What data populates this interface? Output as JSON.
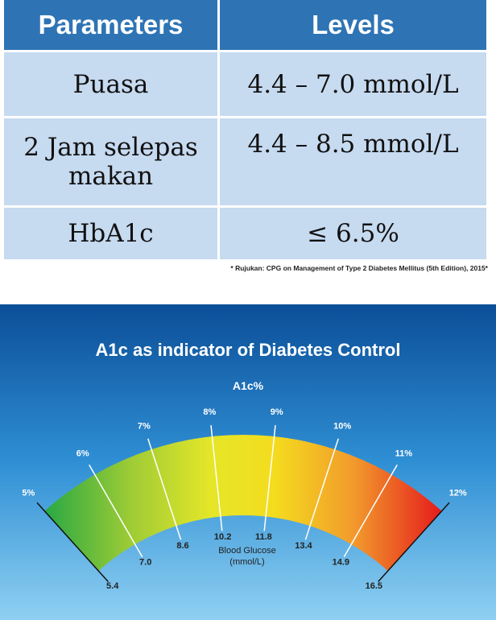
{
  "table": {
    "header": [
      "Parameters",
      "Levels"
    ],
    "rows": [
      [
        "Puasa",
        "4.4 – 7.0 mmol/L"
      ],
      [
        "2 Jam selepas makan",
        "4.4 – 8.5 mmol/L"
      ],
      [
        "HbA1c",
        "≤ 6.5%"
      ]
    ]
  },
  "footnote": "* Rujukan:  CPG on Management of Type 2 Diabetes Mellitus (5th Edition), 2015*",
  "gauge": {
    "title": "A1c as indicator of Diabetes Control",
    "unit": "A1c%",
    "ticks": [
      {
        "a1c": "5%",
        "glucose": "5.4"
      },
      {
        "a1c": "6%",
        "glucose": "7.0"
      },
      {
        "a1c": "7%",
        "glucose": "8.6"
      },
      {
        "a1c": "8%",
        "glucose": "10.2"
      },
      {
        "a1c": "9%",
        "glucose": "11.8"
      },
      {
        "a1c": "10%",
        "glucose": "13.4"
      },
      {
        "a1c": "11%",
        "glucose": "14.9"
      },
      {
        "a1c": "12%",
        "glucose": "16.5"
      }
    ],
    "glucose_label": [
      "Blood Glucose",
      "(mmol/L)"
    ]
  }
}
